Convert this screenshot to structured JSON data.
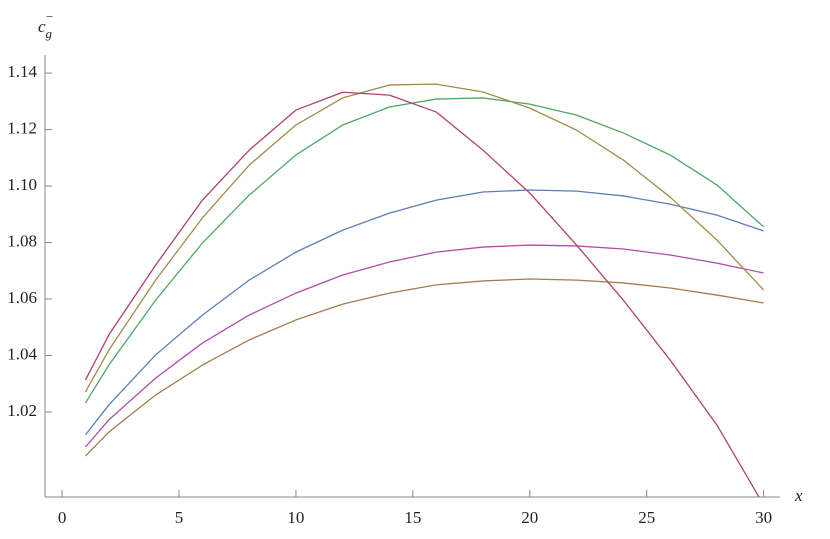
{
  "chart_data": {
    "type": "line",
    "x_label": "x",
    "y_label": {
      "base": "c",
      "sub": "g",
      "sup": "−"
    },
    "x": [
      1,
      2,
      4,
      6,
      8,
      10,
      12,
      14,
      16,
      18,
      20,
      22,
      24,
      26,
      28,
      30
    ],
    "series": [
      {
        "color": "#5b7fb6",
        "values": [
          1.0119,
          1.0225,
          1.0402,
          1.0543,
          1.0667,
          1.0766,
          1.0844,
          1.0904,
          1.095,
          1.0979,
          1.0986,
          1.0982,
          1.0965,
          1.0936,
          1.0897,
          1.0841
        ]
      },
      {
        "color": "#b24ca8",
        "values": [
          1.0076,
          1.0172,
          1.032,
          1.0444,
          1.0543,
          1.0621,
          1.0685,
          1.0731,
          1.0766,
          1.0784,
          1.0791,
          1.0788,
          1.0777,
          1.0756,
          1.0727,
          1.0692
        ]
      },
      {
        "color": "#a67c4e",
        "values": [
          1.0044,
          1.0129,
          1.026,
          1.0366,
          1.0455,
          1.0526,
          1.0582,
          1.0621,
          1.065,
          1.0664,
          1.0671,
          1.0667,
          1.0657,
          1.0639,
          1.0614,
          1.0586
        ]
      },
      {
        "color": "#4ca866",
        "values": [
          1.0232,
          1.0366,
          1.0596,
          1.0798,
          1.0968,
          1.111,
          1.1216,
          1.128,
          1.1308,
          1.1312,
          1.129,
          1.1251,
          1.1188,
          1.111,
          1.1004,
          1.0855
        ]
      },
      {
        "color": "#a08c4c",
        "values": [
          1.0271,
          1.0419,
          1.0667,
          1.0887,
          1.1074,
          1.1216,
          1.1312,
          1.1358,
          1.1361,
          1.1333,
          1.1276,
          1.1198,
          1.1092,
          1.0961,
          1.0809,
          1.0632
        ]
      },
      {
        "color": "#b0406e",
        "values": [
          1.0313,
          1.0473,
          1.072,
          1.095,
          1.1127,
          1.1269,
          1.1332,
          1.1322,
          1.1262,
          1.1127,
          1.0975,
          1.0791,
          1.0596,
          1.0384,
          1.0154,
          0.9871
        ]
      }
    ],
    "xlim": [
      -0.73,
      30.7
    ],
    "ylim": [
      0.9899,
      1.1464
    ],
    "xticks": [
      0,
      5,
      10,
      15,
      20,
      25,
      30
    ],
    "yticks": [
      1.02,
      1.04,
      1.06,
      1.08,
      {
        "value": 1.1,
        "label": "1.10"
      },
      1.12,
      1.14
    ]
  }
}
